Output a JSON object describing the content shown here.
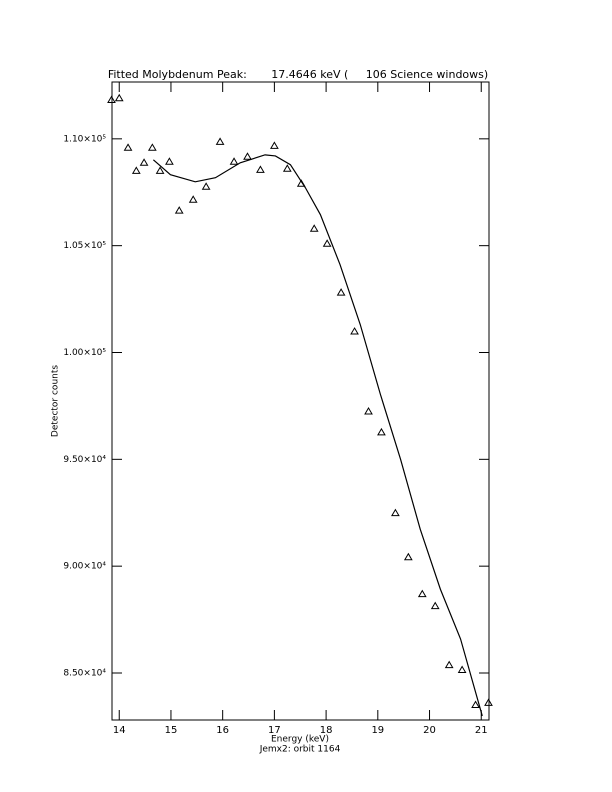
{
  "chart_data": {
    "type": "scatter",
    "title": "Fitted Molybdenum Peak:       17.4646 keV (     106 Science windows)",
    "x_label": "Energy (keV)",
    "subtitle": "Jemx2: orbit 1164",
    "y_label": "Detector counts",
    "xlim": [
      13.86,
      21.15
    ],
    "ylim": [
      82800,
      112660
    ],
    "xticks": [
      14,
      15,
      16,
      17,
      18,
      19,
      20,
      21
    ],
    "yticks": [
      {
        "value": 85000,
        "label": "8.50×10⁴"
      },
      {
        "value": 90000,
        "label": "9.00×10⁴"
      },
      {
        "value": 95000,
        "label": "9.50×10⁴"
      },
      {
        "value": 100000,
        "label": "1.00×10⁵"
      },
      {
        "value": 105000,
        "label": "1.05×10⁵"
      },
      {
        "value": 110000,
        "label": "1.10×10⁵"
      }
    ],
    "series": [
      {
        "style": "triangle",
        "color": "#000000",
        "x": [
          13.85,
          14.0,
          14.17,
          14.33,
          14.48,
          14.64,
          14.79,
          14.97,
          15.16,
          15.43,
          15.68,
          15.95,
          16.22,
          16.48,
          16.73,
          17.0,
          17.25,
          17.52,
          17.77,
          18.02,
          18.29,
          18.55,
          18.82,
          19.07,
          19.34,
          19.59,
          19.86,
          20.11,
          20.38,
          20.63,
          20.89,
          21.14
        ],
        "values": [
          111820,
          111900,
          109580,
          108500,
          108880,
          109580,
          108500,
          108930,
          106640,
          107150,
          107760,
          109860,
          108930,
          109160,
          108550,
          109670,
          108600,
          107900,
          105790,
          105090,
          102800,
          100980,
          97240,
          96260,
          92480,
          90420,
          88690,
          88130,
          85370,
          85140,
          83500,
          83600
        ]
      },
      {
        "style": "line",
        "color": "#000000",
        "x": [
          14.66,
          14.99,
          15.47,
          15.86,
          16.34,
          16.82,
          17.02,
          17.31,
          17.6,
          17.89,
          18.27,
          18.66,
          19.05,
          19.44,
          19.82,
          20.21,
          20.6,
          21.02
        ],
        "values": [
          109020,
          108320,
          107990,
          108180,
          108880,
          109250,
          109200,
          108790,
          107710,
          106450,
          104110,
          101310,
          98040,
          95000,
          91730,
          88920,
          86590,
          82990
        ]
      }
    ]
  }
}
